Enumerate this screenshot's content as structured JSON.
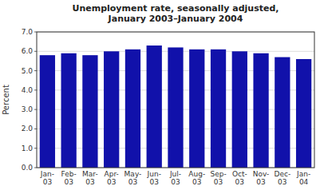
{
  "chart_data": {
    "type": "bar",
    "title": "Unemployment rate, seasonally adjusted,\nJanuary 2003–January 2004",
    "y_label": "Percent",
    "categories": [
      "Jan-\n03",
      "Feb-\n03",
      "Mar-\n03",
      "Apr-\n03",
      "May-\n03",
      "Jun-\n03",
      "Jul-\n03",
      "Aug-\n03",
      "Sep-\n03",
      "Oct-\n03",
      "Nov-\n03",
      "Dec-\n03",
      "Jan-\n04"
    ],
    "values": [
      5.8,
      5.9,
      5.8,
      6.0,
      6.1,
      6.3,
      6.2,
      6.1,
      6.1,
      6.0,
      5.9,
      5.7,
      5.6
    ],
    "color": "#1111aa",
    "ylim": [
      0.0,
      7.0
    ],
    "yticks": [
      {
        "value": 0.0,
        "label": "0.0"
      },
      {
        "value": 1.0,
        "label": "1.0"
      },
      {
        "value": 2.0,
        "label": "2.0"
      },
      {
        "value": 3.0,
        "label": "3.0"
      },
      {
        "value": 4.0,
        "label": "4.0"
      },
      {
        "value": 5.0,
        "label": "5.0"
      },
      {
        "value": 6.0,
        "label": "6.0"
      },
      {
        "value": 7.0,
        "label": "7.0"
      }
    ],
    "grid": true
  }
}
